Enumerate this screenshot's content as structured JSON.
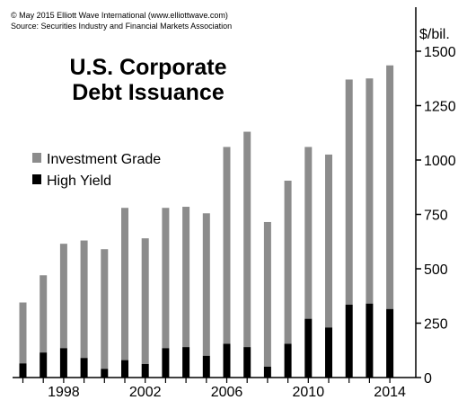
{
  "credit": {
    "line1": "© May 2015 Elliott Wave International (www.elliottwave.com)",
    "line2": "Source: Securities Industry and Financial Markets Association"
  },
  "colors": {
    "investment_grade": "#8c8c8c",
    "high_yield": "#000000",
    "axis": "#000000",
    "background": "#ffffff"
  },
  "chart_data": {
    "type": "bar",
    "stacked": true,
    "title": [
      "U.S. Corporate",
      "Debt Issuance"
    ],
    "unit_label": "$/bil.",
    "xlabel": "",
    "ylabel": "",
    "ylim": [
      0,
      1500
    ],
    "yticks": [
      0,
      250,
      500,
      750,
      1000,
      1250,
      1500
    ],
    "ytick_labels": [
      "0",
      "250",
      "500",
      "750",
      "1000",
      "1250",
      "1500"
    ],
    "y_axis_side": "right",
    "grid": false,
    "legend_position": "top-left",
    "x": [
      1996,
      1997,
      1998,
      1999,
      2000,
      2001,
      2002,
      2003,
      2004,
      2005,
      2006,
      2007,
      2008,
      2009,
      2010,
      2011,
      2012,
      2013,
      2014
    ],
    "xtick_labels": [
      {
        "year": 1998,
        "label": "1998"
      },
      {
        "year": 2002,
        "label": "2002"
      },
      {
        "year": 2006,
        "label": "2006"
      },
      {
        "year": 2010,
        "label": "2010"
      },
      {
        "year": 2014,
        "label": "2014"
      }
    ],
    "series": [
      {
        "name": "Investment Grade",
        "totals": [
          345,
          470,
          615,
          630,
          590,
          780,
          640,
          780,
          785,
          755,
          1060,
          1130,
          715,
          905,
          1060,
          1025,
          1370,
          1375,
          1435
        ]
      },
      {
        "name": "High Yield",
        "values": [
          65,
          115,
          135,
          90,
          40,
          80,
          62,
          135,
          140,
          100,
          155,
          140,
          50,
          155,
          270,
          230,
          335,
          340,
          315
        ]
      }
    ]
  }
}
